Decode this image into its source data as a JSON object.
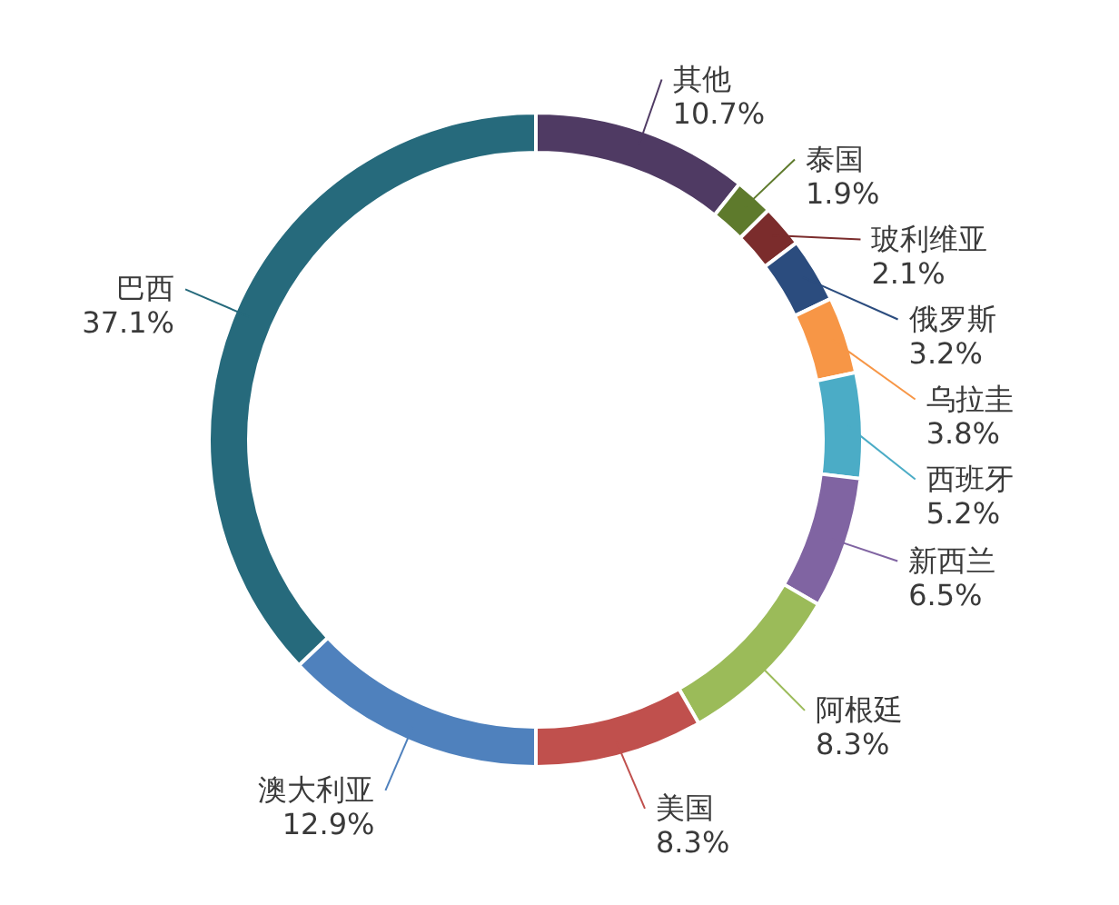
{
  "chart_data": {
    "type": "donut",
    "categories": [
      "其他",
      "泰国",
      "玻利维亚",
      "俄罗斯",
      "乌拉圭",
      "西班牙",
      "新西兰",
      "阿根廷",
      "美国",
      "澳大利亚",
      "巴西"
    ],
    "values": [
      10.7,
      1.9,
      2.1,
      3.2,
      3.8,
      5.2,
      6.5,
      8.3,
      8.3,
      12.9,
      37.1
    ],
    "value_labels": [
      "10.7%",
      "1.9%",
      "2.1%",
      "3.2%",
      "3.8%",
      "5.2%",
      "6.5%",
      "8.3%",
      "8.3%",
      "12.9%",
      "37.1%"
    ],
    "colors": [
      "#4f3a63",
      "#5e7a2c",
      "#7b2c2c",
      "#2b4c7e",
      "#f79646",
      "#4bacc6",
      "#8064a2",
      "#9bbb59",
      "#c0504d",
      "#4f81bd",
      "#266a7c"
    ]
  }
}
